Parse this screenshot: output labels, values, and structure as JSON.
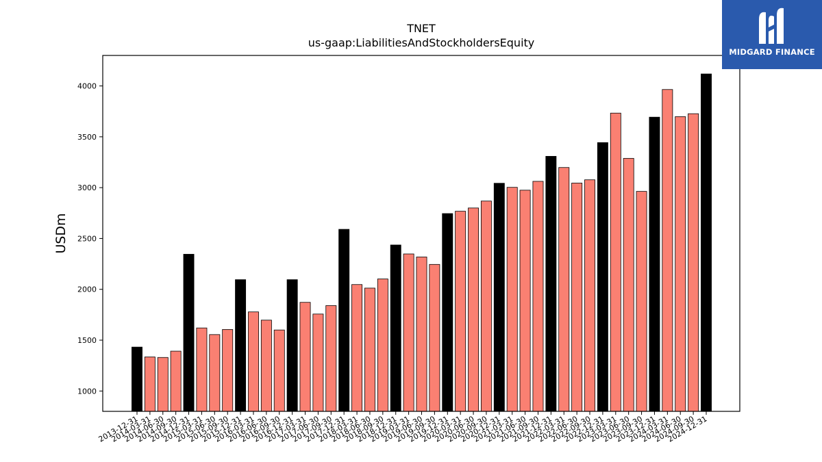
{
  "chart_data": {
    "type": "bar",
    "title": "TNET",
    "subtitle": "us-gaap:LiabilitiesAndStockholdersEquity",
    "ylabel": "USDm",
    "xlabel": "",
    "ylim": [
      800,
      4300
    ],
    "yticks": [
      1000,
      1500,
      2000,
      2500,
      3000,
      3500,
      4000
    ],
    "grid": false,
    "colors": {
      "year_end": "#000000",
      "quarter": "#fa8072",
      "edge": "#000000"
    },
    "categories": [
      "2013-12-31",
      "2014-03-31",
      "2014-06-30",
      "2014-09-30",
      "2014-12-31",
      "2015-03-31",
      "2015-06-30",
      "2015-09-30",
      "2015-12-31",
      "2016-03-31",
      "2016-06-30",
      "2016-09-30",
      "2016-12-31",
      "2017-03-31",
      "2017-06-30",
      "2017-09-30",
      "2017-12-31",
      "2018-03-31",
      "2018-06-30",
      "2018-09-30",
      "2018-12-31",
      "2019-03-31",
      "2019-06-30",
      "2019-09-30",
      "2019-12-31",
      "2020-03-31",
      "2020-06-30",
      "2020-09-30",
      "2020-12-31",
      "2021-03-31",
      "2021-06-30",
      "2021-09-30",
      "2021-12-31",
      "2022-03-31",
      "2022-06-30",
      "2022-09-30",
      "2022-12-31",
      "2023-03-31",
      "2023-06-30",
      "2023-09-30",
      "2023-12-31",
      "2024-03-31",
      "2024-06-30",
      "2024-09-30",
      "2024-12-31"
    ],
    "values": [
      1432,
      1335,
      1330,
      1392,
      2345,
      1620,
      1555,
      1605,
      2095,
      1778,
      1697,
      1600,
      2095,
      1872,
      1757,
      1840,
      2590,
      2047,
      2012,
      2102,
      2436,
      2348,
      2318,
      2245,
      2745,
      2768,
      2800,
      2868,
      3043,
      3003,
      2975,
      3062,
      3308,
      3198,
      3045,
      3077,
      3443,
      3733,
      3288,
      2963,
      3693,
      3965,
      3698,
      3727,
      4118
    ]
  },
  "logo": {
    "text": "MIDGARD FINANCE",
    "color": "#2a5aad"
  }
}
